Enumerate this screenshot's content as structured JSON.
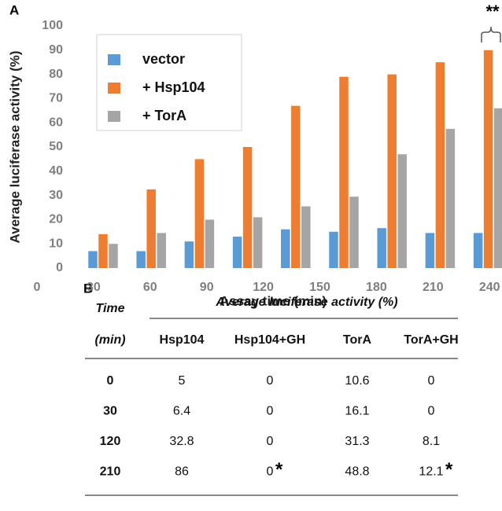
{
  "panel_a": "A",
  "panel_b": "B",
  "chart_data": {
    "type": "bar",
    "ylabel": "Average luciferase activity (%)",
    "xlabel": "Assay time (min)",
    "annotation": "**",
    "categories": [
      "0",
      "30",
      "60",
      "90",
      "120",
      "150",
      "180",
      "210",
      "240"
    ],
    "series": [
      {
        "name": "vector",
        "color": "#5b9bd5",
        "values": [
          7,
          7,
          11,
          13,
          16,
          15,
          16.5,
          14.5,
          14.5
        ]
      },
      {
        "name": "+ Hsp104",
        "color": "#ed7d31",
        "values": [
          14,
          32.5,
          45,
          50,
          67,
          79,
          80,
          85,
          90
        ]
      },
      {
        "name": "+ TorA",
        "color": "#a5a5a5",
        "values": [
          10,
          14.5,
          20,
          21,
          25.5,
          29.5,
          47,
          57.5,
          66
        ]
      }
    ],
    "ylim": [
      0,
      100
    ],
    "yticks": [
      0,
      10,
      20,
      30,
      40,
      50,
      60,
      70,
      80,
      90,
      100
    ],
    "grid": false
  },
  "table": {
    "time_header": [
      "Time",
      "(min)"
    ],
    "group_header": "Average luciferase activity (%)",
    "columns": [
      "Hsp104",
      "Hsp104+GH",
      "TorA",
      "TorA+GH"
    ],
    "rows": [
      [
        "0",
        "5",
        "0",
        "10.6",
        "0"
      ],
      [
        "30",
        "6.4",
        "0",
        "16.1",
        "0"
      ],
      [
        "120",
        "32.8",
        "0",
        "31.3",
        "8.1"
      ],
      [
        "210",
        "86",
        "0",
        "48.8",
        "12.1"
      ]
    ],
    "asterisks": [
      "*",
      "*"
    ]
  }
}
